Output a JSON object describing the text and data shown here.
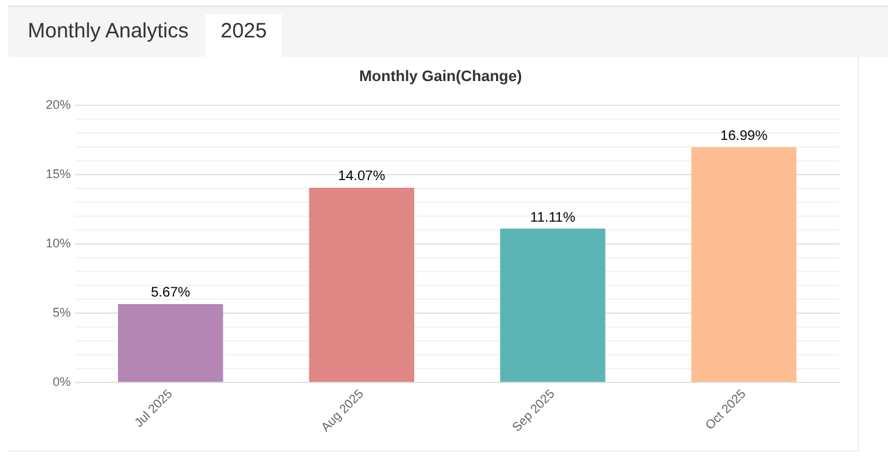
{
  "chart_data": {
    "type": "bar",
    "title": "Monthly Gain(Change)",
    "annotations": [
      "Monthly Analytics",
      "2025"
    ],
    "categories": [
      "Jul 2025",
      "Aug 2025",
      "Sep 2025",
      "Oct 2025"
    ],
    "values": [
      5.67,
      14.07,
      11.11,
      16.99
    ],
    "colors": [
      "#b386b4",
      "#e08684",
      "#5ab5b4",
      "#ffbd93"
    ],
    "value_labels": [
      "5.67%",
      "14.07%",
      "11.11%",
      "16.99%"
    ],
    "ylim": [
      0,
      20
    ],
    "yticks": [
      {
        "value": 0,
        "label": "0%"
      },
      {
        "value": 1,
        "label": null
      },
      {
        "value": 2,
        "label": null
      },
      {
        "value": 3,
        "label": null
      },
      {
        "value": 4,
        "label": null
      },
      {
        "value": 5,
        "label": "5%"
      },
      {
        "value": 6,
        "label": null
      },
      {
        "value": 7,
        "label": null
      },
      {
        "value": 8,
        "label": null
      },
      {
        "value": 9,
        "label": null
      },
      {
        "value": 10,
        "label": "10%"
      },
      {
        "value": 11,
        "label": null
      },
      {
        "value": 12,
        "label": null
      },
      {
        "value": 13,
        "label": null
      },
      {
        "value": 14,
        "label": null
      },
      {
        "value": 15,
        "label": "15%"
      },
      {
        "value": 16,
        "label": null
      },
      {
        "value": 17,
        "label": null
      },
      {
        "value": 18,
        "label": null
      },
      {
        "value": 19,
        "label": null
      },
      {
        "value": 20,
        "label": "20%"
      }
    ],
    "grid": "y",
    "legend": false
  }
}
